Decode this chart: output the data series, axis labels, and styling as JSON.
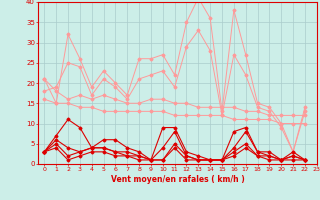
{
  "background_color": "#cceee8",
  "grid_color": "#aacccc",
  "line_color_dark": "#dd0000",
  "line_color_light": "#ff9999",
  "xlabel": "Vent moyen/en rafales ( km/h )",
  "xlim": [
    -0.5,
    23
  ],
  "ylim": [
    0,
    40
  ],
  "yticks": [
    0,
    5,
    10,
    15,
    20,
    25,
    30,
    35,
    40
  ],
  "xticks": [
    0,
    1,
    2,
    3,
    4,
    5,
    6,
    7,
    8,
    9,
    10,
    11,
    12,
    13,
    14,
    15,
    16,
    17,
    18,
    19,
    20,
    21,
    22,
    23
  ],
  "series_light": [
    [
      21,
      15,
      32,
      26,
      19,
      23,
      20,
      17,
      26,
      26,
      27,
      22,
      35,
      41,
      36,
      13,
      38,
      27,
      15,
      14,
      10,
      3,
      14
    ],
    [
      18,
      19,
      25,
      24,
      17,
      21,
      19,
      16,
      21,
      22,
      23,
      19,
      29,
      33,
      28,
      12,
      27,
      22,
      14,
      13,
      9,
      3,
      13
    ],
    [
      21,
      18,
      16,
      17,
      16,
      17,
      16,
      15,
      15,
      16,
      16,
      15,
      15,
      14,
      14,
      14,
      14,
      13,
      13,
      12,
      12,
      12,
      12
    ],
    [
      16,
      15,
      15,
      14,
      14,
      13,
      13,
      13,
      13,
      13,
      13,
      12,
      12,
      12,
      12,
      12,
      11,
      11,
      11,
      11,
      10,
      10,
      10
    ]
  ],
  "series_dark": [
    [
      3,
      7,
      11,
      9,
      4,
      6,
      6,
      4,
      3,
      1,
      9,
      9,
      3,
      2,
      1,
      1,
      8,
      9,
      3,
      3,
      1,
      3,
      1
    ],
    [
      3,
      6,
      4,
      3,
      4,
      4,
      3,
      3,
      2,
      1,
      4,
      8,
      2,
      1,
      1,
      1,
      4,
      8,
      3,
      2,
      1,
      2,
      1
    ],
    [
      3,
      5,
      2,
      3,
      4,
      4,
      3,
      2,
      2,
      1,
      1,
      5,
      2,
      1,
      1,
      1,
      3,
      5,
      2,
      2,
      1,
      2,
      1
    ],
    [
      3,
      4,
      1,
      2,
      3,
      3,
      2,
      2,
      1,
      1,
      1,
      4,
      1,
      1,
      1,
      1,
      2,
      4,
      2,
      1,
      1,
      1,
      1
    ]
  ]
}
